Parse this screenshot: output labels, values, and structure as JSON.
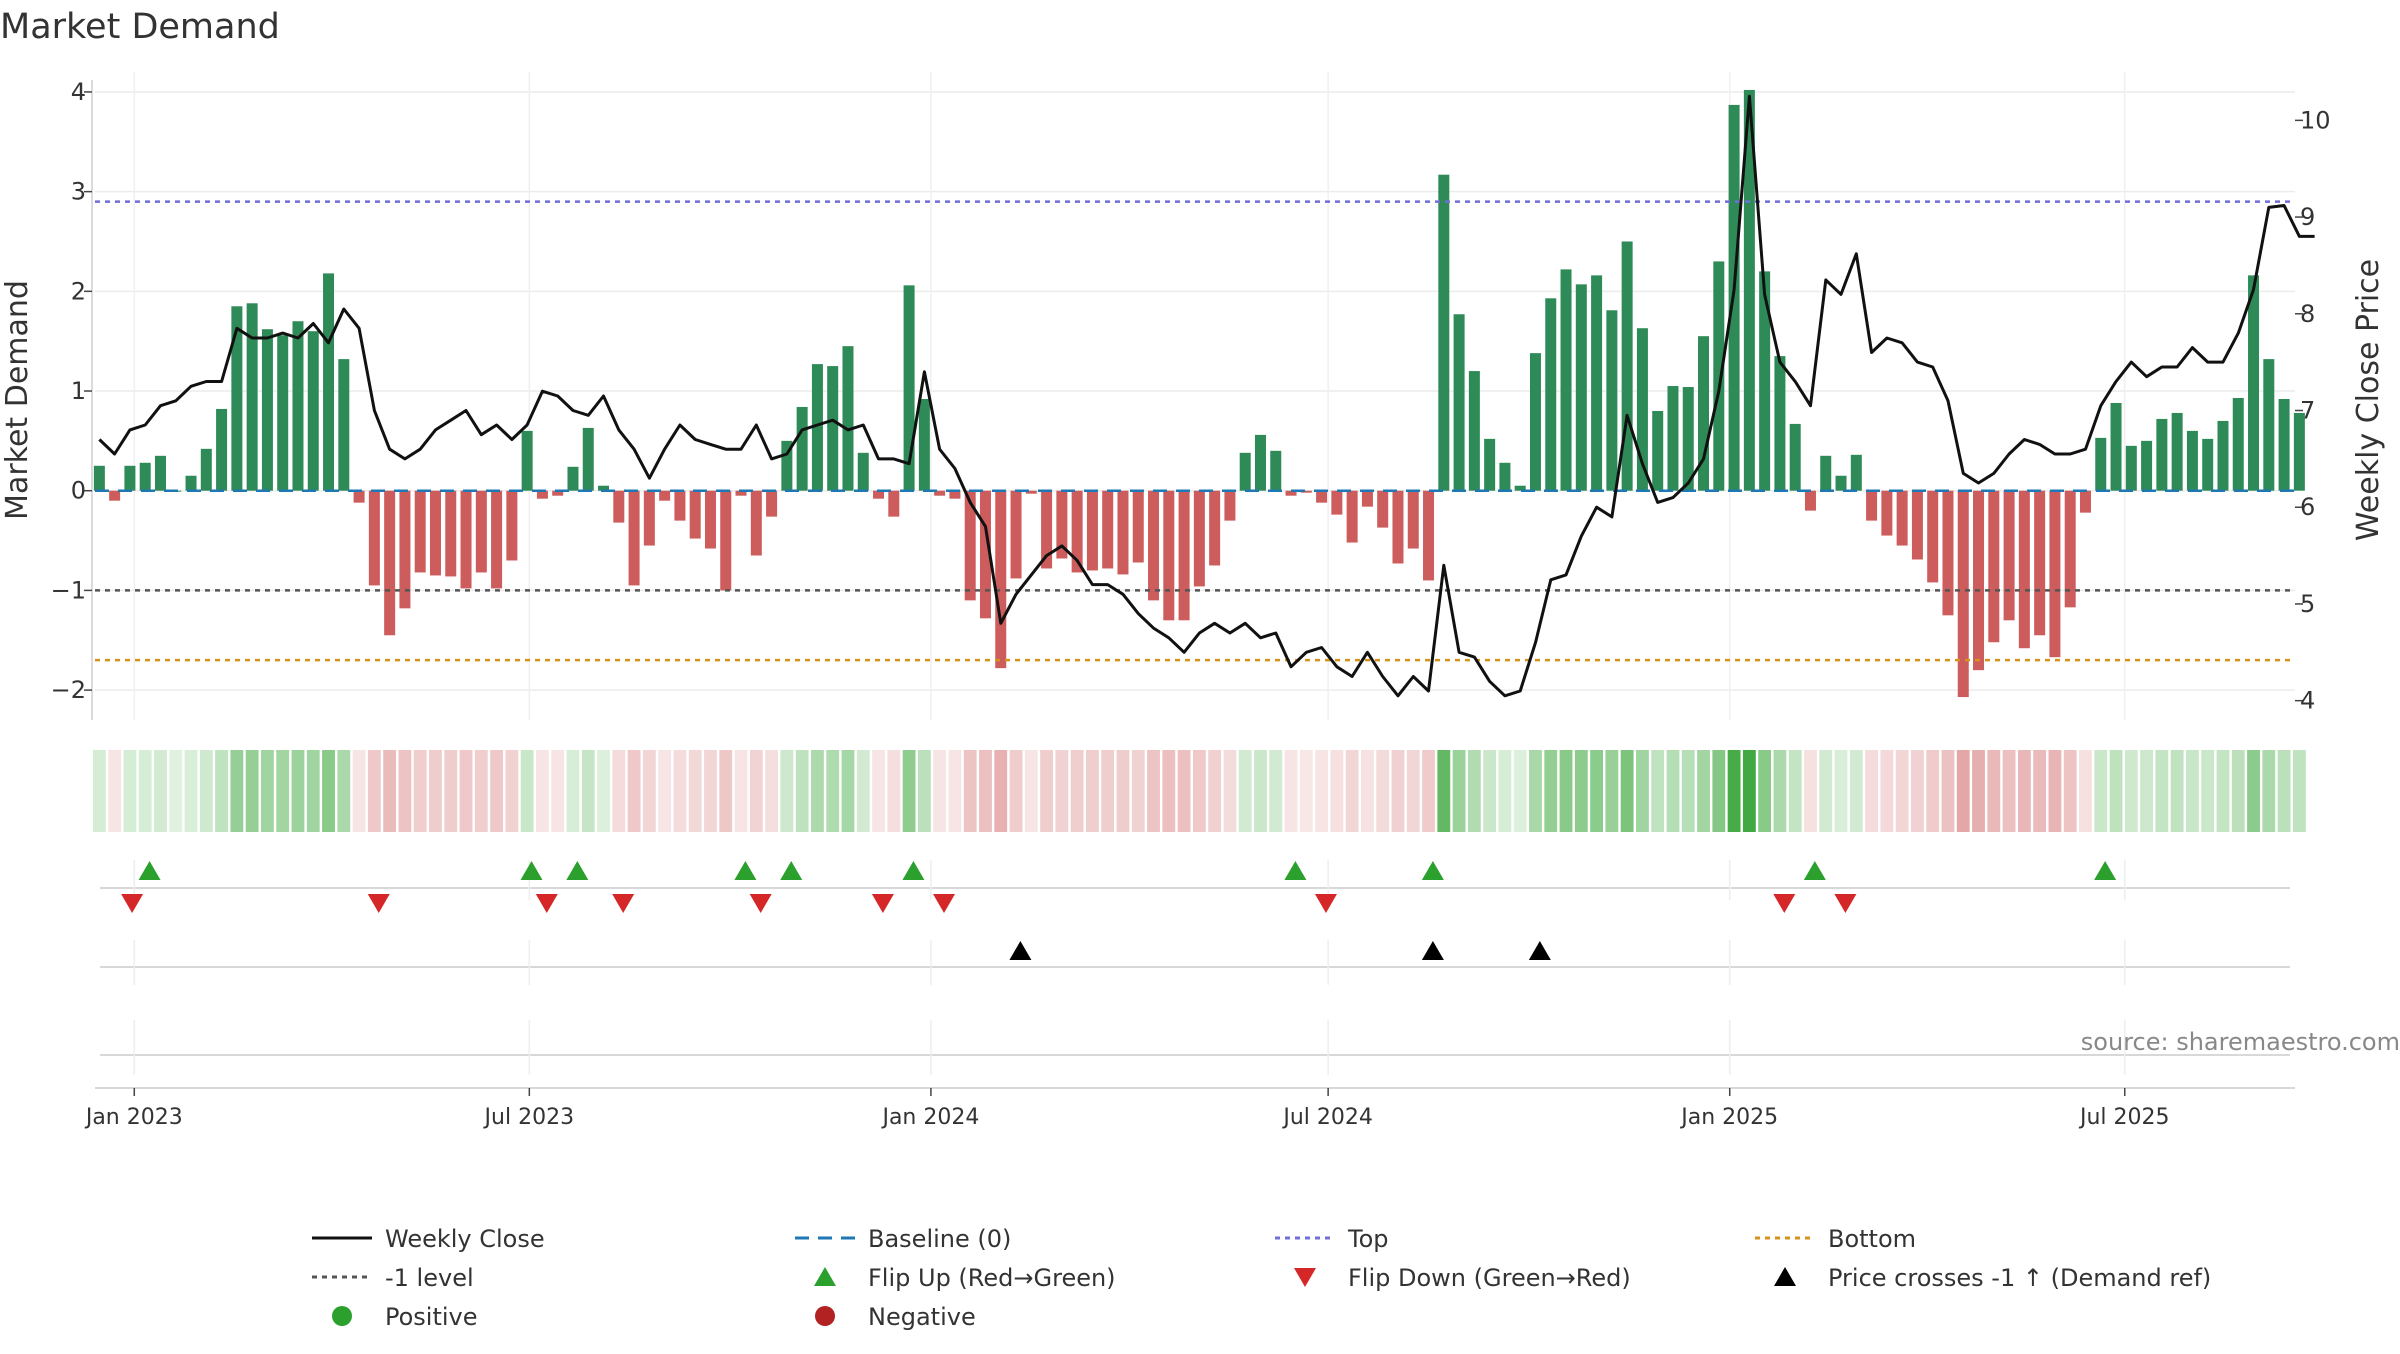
{
  "chart_data": {
    "type": "bar",
    "title": "Market Demand",
    "ylabel_left": "Market Demand",
    "ylabel_right": "Weekly Close Price",
    "ylim_left": [
      -2.3,
      4.2
    ],
    "ylim_right": [
      3.8,
      10.5
    ],
    "yticks_left": [
      -2,
      -1,
      0,
      1,
      2,
      3,
      4
    ],
    "yticks_left_labels": [
      "−2",
      "−1",
      "0",
      "1",
      "2",
      "3",
      "4"
    ],
    "yticks_right": [
      4,
      5,
      6,
      7,
      8,
      9,
      10
    ],
    "yticks_right_labels": [
      "4",
      "5",
      "6",
      "7",
      "8",
      "9",
      "10"
    ],
    "x_start_date": "2022-12-16",
    "x_step_days": 7,
    "x_range_dates": [
      "2022-12-14",
      "2025-09-17"
    ],
    "xtick_dates": [
      "2023-01-01",
      "2023-07-01",
      "2024-01-01",
      "2024-07-01",
      "2025-01-01",
      "2025-07-01"
    ],
    "xtick_labels": [
      "Jan 2023",
      "Jul 2023",
      "Jan 2024",
      "Jul 2024",
      "Jan 2025",
      "Jul 2025"
    ],
    "reference_lines": {
      "top": 2.9,
      "bottom": -1.7,
      "minus_one": -1,
      "baseline": 0
    },
    "series": [
      {
        "name": "Market Demand",
        "axis": "left",
        "values": [
          0.25,
          -0.1,
          0.25,
          0.28,
          0.35,
          0.0,
          0.15,
          0.42,
          0.82,
          1.85,
          1.88,
          1.62,
          1.56,
          1.7,
          1.6,
          2.18,
          1.32,
          -0.12,
          -0.95,
          -1.45,
          -1.18,
          -0.82,
          -0.85,
          -0.86,
          -0.98,
          -0.82,
          -0.98,
          -0.7,
          0.6,
          -0.08,
          -0.05,
          0.24,
          0.63,
          0.05,
          -0.32,
          -0.95,
          -0.55,
          -0.1,
          -0.3,
          -0.48,
          -0.58,
          -1.0,
          -0.05,
          -0.65,
          -0.26,
          0.5,
          0.84,
          1.27,
          1.25,
          1.45,
          0.38,
          -0.08,
          -0.26,
          2.06,
          0.92,
          -0.05,
          -0.08,
          -1.1,
          -1.28,
          -1.78,
          -0.88,
          -0.03,
          -0.78,
          -0.68,
          -0.82,
          -0.8,
          -0.78,
          -0.84,
          -0.72,
          -1.1,
          -1.3,
          -1.3,
          -0.96,
          -0.75,
          -0.3,
          0.38,
          0.56,
          0.4,
          -0.05,
          -0.02,
          -0.12,
          -0.24,
          -0.52,
          -0.16,
          -0.37,
          -0.73,
          -0.58,
          -0.9,
          3.17,
          1.77,
          1.2,
          0.52,
          0.28,
          0.05,
          1.38,
          1.93,
          2.22,
          2.07,
          2.16,
          1.81,
          2.5,
          1.63,
          0.8,
          1.05,
          1.04,
          1.55,
          2.3,
          3.87,
          4.02,
          2.2,
          1.35,
          0.67,
          -0.2,
          0.35,
          0.15,
          0.36,
          -0.3,
          -0.45,
          -0.55,
          -0.69,
          -0.92,
          -1.25,
          -2.07,
          -1.8,
          -1.52,
          -1.3,
          -1.58,
          -1.45,
          -1.67,
          -1.17,
          -0.22,
          0.53,
          0.88,
          0.45,
          0.5,
          0.72,
          0.78,
          0.6,
          0.52,
          0.7,
          0.93,
          2.16,
          1.32,
          0.92,
          0.78
        ]
      },
      {
        "name": "Weekly Close",
        "axis": "right",
        "values": [
          6.7,
          6.55,
          6.8,
          6.85,
          7.05,
          7.1,
          7.25,
          7.3,
          7.3,
          7.85,
          7.75,
          7.75,
          7.8,
          7.75,
          7.9,
          7.7,
          8.05,
          7.85,
          7.0,
          6.6,
          6.5,
          6.6,
          6.8,
          6.9,
          7.0,
          6.75,
          6.85,
          6.7,
          6.85,
          7.2,
          7.15,
          7.0,
          6.95,
          7.15,
          6.8,
          6.6,
          6.3,
          6.6,
          6.85,
          6.7,
          6.65,
          6.6,
          6.6,
          6.85,
          6.5,
          6.55,
          6.8,
          6.85,
          6.9,
          6.8,
          6.85,
          6.5,
          6.5,
          6.45,
          7.4,
          6.6,
          6.4,
          6.05,
          5.8,
          4.8,
          5.1,
          5.3,
          5.5,
          5.6,
          5.45,
          5.2,
          5.2,
          5.1,
          4.9,
          4.75,
          4.65,
          4.5,
          4.7,
          4.8,
          4.7,
          4.8,
          4.65,
          4.7,
          4.35,
          4.5,
          4.55,
          4.35,
          4.25,
          4.5,
          4.25,
          4.05,
          4.25,
          4.1,
          5.4,
          4.5,
          4.45,
          4.2,
          4.05,
          4.1,
          4.6,
          5.25,
          5.3,
          5.7,
          6.0,
          5.9,
          6.95,
          6.45,
          6.05,
          6.1,
          6.25,
          6.5,
          7.2,
          8.25,
          10.25,
          8.2,
          7.5,
          7.3,
          7.05,
          8.35,
          8.2,
          8.62,
          7.6,
          7.75,
          7.7,
          7.5,
          7.45,
          7.1,
          6.35,
          6.25,
          6.35,
          6.55,
          6.7,
          6.65,
          6.55,
          6.55,
          6.6,
          7.05,
          7.3,
          7.5,
          7.35,
          7.45,
          7.45,
          7.65,
          7.5,
          7.5,
          7.8,
          8.25,
          9.1,
          9.12,
          8.8,
          8.8
        ]
      }
    ],
    "heat_strip_values": "same as Market Demand series",
    "flip_up_dates": [
      "2023-01-08",
      "2023-07-02",
      "2023-07-23",
      "2023-10-08",
      "2023-10-29",
      "2023-12-24",
      "2024-06-16",
      "2024-08-18",
      "2025-02-09",
      "2025-06-22"
    ],
    "flip_down_dates": [
      "2022-12-31",
      "2023-04-23",
      "2023-07-09",
      "2023-08-13",
      "2023-10-15",
      "2023-12-10",
      "2024-01-07",
      "2024-06-30",
      "2025-01-26",
      "2025-02-23"
    ],
    "price_cross_dates": [
      "2024-02-11",
      "2024-08-18",
      "2024-10-06"
    ],
    "source_text": "source: sharemaestro.com",
    "legend": [
      {
        "label": "Weekly Close",
        "kind": "line",
        "color": "#111111"
      },
      {
        "label": "Baseline (0)",
        "kind": "dashed",
        "color": "#1f77b4"
      },
      {
        "label": "Top",
        "kind": "dotted",
        "color": "#6f6fd6"
      },
      {
        "label": "Bottom",
        "kind": "dotted",
        "color": "#d4941c"
      },
      {
        "label": "-1 level",
        "kind": "dotted",
        "color": "#555555"
      },
      {
        "label": "Flip Up (Red→Green)",
        "kind": "tri-up",
        "color": "#2ca02c"
      },
      {
        "label": "Flip Down (Green→Red)",
        "kind": "tri-down",
        "color": "#d62728"
      },
      {
        "label": "Price crosses -1 ↑ (Demand ref)",
        "kind": "tri-up",
        "color": "#000000"
      },
      {
        "label": "Positive",
        "kind": "dot",
        "color": "#2ca02c"
      },
      {
        "label": "Negative",
        "kind": "dot",
        "color": "#b22222"
      }
    ],
    "colors": {
      "positive_bar": "#2e8b57",
      "negative_bar": "#cd5c5c",
      "price_line": "#111111",
      "baseline": "#1f77b4",
      "top": "#6f6fd6",
      "bottom": "#d4941c",
      "minus_one": "#555555",
      "flip_up": "#2ca02c",
      "flip_down": "#d62728",
      "cross": "#000000",
      "positive_dot": "#2ca02c",
      "negative_dot": "#b22222",
      "heat_positive": "#2ca02c",
      "heat_negative": "#cd5c5c"
    }
  }
}
